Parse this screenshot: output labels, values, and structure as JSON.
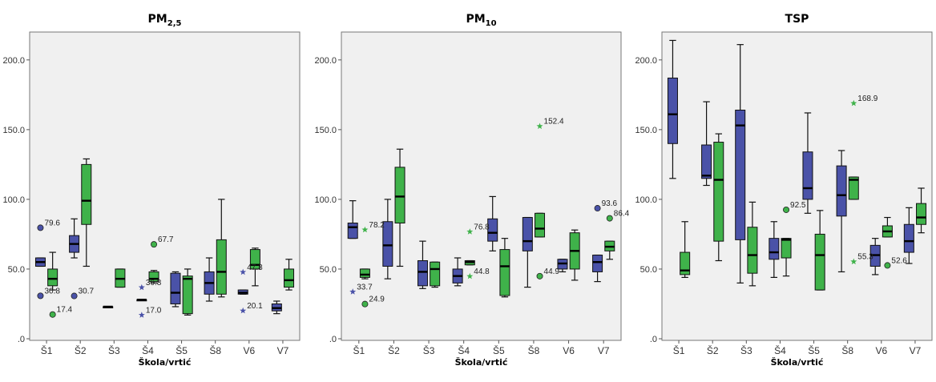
{
  "colors": {
    "blue": "#4a52a8",
    "green": "#3fb24a",
    "plot_bg": "#f0f0f0",
    "frame": "#777777"
  },
  "chart_data": [
    {
      "type": "boxplot",
      "title": "PM",
      "title_sub": "2,5",
      "xlabel": "Škola/vrtić",
      "ylabel": "",
      "ylim": [
        0,
        220
      ],
      "yticks": [
        ".0",
        "50.0",
        "100.0",
        "150.0",
        "200.0"
      ],
      "categories": [
        "Š1",
        "Š2",
        "Š3",
        "Š4",
        "Š5",
        "Š8",
        "V6",
        "V7"
      ],
      "boxes": [
        {
          "cat": "Š1",
          "series": "blue",
          "min": 52,
          "q1": 52,
          "median": 55,
          "q3": 58,
          "max": 58
        },
        {
          "cat": "Š1",
          "series": "green",
          "min": 35,
          "q1": 38,
          "median": 43,
          "q3": 50,
          "max": 62
        },
        {
          "cat": "Š2",
          "series": "blue",
          "min": 58,
          "q1": 62,
          "median": 68,
          "q3": 74,
          "max": 86
        },
        {
          "cat": "Š2",
          "series": "green",
          "min": 52,
          "q1": 82,
          "median": 99,
          "q3": 125,
          "max": 129
        },
        {
          "cat": "Š3",
          "series": "blue",
          "min": 23,
          "q1": 23,
          "median": 23,
          "q3": 23,
          "max": 23
        },
        {
          "cat": "Š3",
          "series": "green",
          "min": 37,
          "q1": 37,
          "median": 43,
          "q3": 50,
          "max": 50
        },
        {
          "cat": "Š4",
          "series": "blue",
          "min": 28,
          "q1": 28,
          "median": 28,
          "q3": 28,
          "max": 28
        },
        {
          "cat": "Š4",
          "series": "green",
          "min": 40,
          "q1": 41,
          "median": 43,
          "q3": 48,
          "max": 49
        },
        {
          "cat": "Š5",
          "series": "blue",
          "min": 23,
          "q1": 25,
          "median": 33,
          "q3": 47,
          "max": 48
        },
        {
          "cat": "Š5",
          "series": "green",
          "min": 17,
          "q1": 18,
          "median": 43,
          "q3": 45,
          "max": 50
        },
        {
          "cat": "Š8",
          "series": "blue",
          "min": 27,
          "q1": 32,
          "median": 40,
          "q3": 48,
          "max": 58
        },
        {
          "cat": "Š8",
          "series": "green",
          "min": 30,
          "q1": 32,
          "median": 48,
          "q3": 71,
          "max": 100
        },
        {
          "cat": "V6",
          "series": "blue",
          "min": 32,
          "q1": 32,
          "median": 33,
          "q3": 35,
          "max": 35
        },
        {
          "cat": "V6",
          "series": "green",
          "min": 38,
          "q1": 50,
          "median": 53,
          "q3": 64,
          "max": 65
        },
        {
          "cat": "V7",
          "series": "blue",
          "min": 18,
          "q1": 20,
          "median": 22,
          "q3": 25,
          "max": 27
        },
        {
          "cat": "V7",
          "series": "green",
          "min": 35,
          "q1": 37,
          "median": 42,
          "q3": 50,
          "max": 57
        }
      ],
      "outliers": [
        {
          "cat": "Š1",
          "series": "blue",
          "shape": "circle",
          "value": 79.6,
          "label": "79.6"
        },
        {
          "cat": "Š1",
          "series": "blue",
          "shape": "circle",
          "value": 30.8,
          "label": "30.8"
        },
        {
          "cat": "Š1",
          "series": "green",
          "shape": "circle",
          "value": 17.4,
          "label": "17.4"
        },
        {
          "cat": "Š2",
          "series": "blue",
          "shape": "circle",
          "value": 30.7,
          "label": "30.7"
        },
        {
          "cat": "Š4",
          "series": "blue",
          "shape": "star",
          "value": 36.8,
          "label": "36.8"
        },
        {
          "cat": "Š4",
          "series": "blue",
          "shape": "star",
          "value": 17.0,
          "label": "17.0"
        },
        {
          "cat": "Š4",
          "series": "green",
          "shape": "circle",
          "value": 67.7,
          "label": "67.7"
        },
        {
          "cat": "V6",
          "series": "blue",
          "shape": "star",
          "value": 47.8,
          "label": "47.8"
        },
        {
          "cat": "V6",
          "series": "blue",
          "shape": "star",
          "value": 20.1,
          "label": "20.1"
        }
      ]
    },
    {
      "type": "boxplot",
      "title": "PM",
      "title_sub": "10",
      "xlabel": "Škola/vrtić",
      "ylabel": "",
      "ylim": [
        0,
        220
      ],
      "yticks": [
        ".0",
        "50.0",
        "100.0",
        "150.0",
        "200.0"
      ],
      "categories": [
        "Š1",
        "Š2",
        "Š3",
        "Š4",
        "Š5",
        "Š8",
        "V6",
        "V7"
      ],
      "boxes": [
        {
          "cat": "Š1",
          "series": "blue",
          "min": 72,
          "q1": 72,
          "median": 80,
          "q3": 83,
          "max": 99
        },
        {
          "cat": "Š1",
          "series": "green",
          "min": 43,
          "q1": 44,
          "median": 46,
          "q3": 50,
          "max": 50
        },
        {
          "cat": "Š2",
          "series": "blue",
          "min": 43,
          "q1": 52,
          "median": 67,
          "q3": 84,
          "max": 100
        },
        {
          "cat": "Š2",
          "series": "green",
          "min": 52,
          "q1": 83,
          "median": 102,
          "q3": 123,
          "max": 136
        },
        {
          "cat": "Š3",
          "series": "blue",
          "min": 36,
          "q1": 38,
          "median": 48,
          "q3": 56,
          "max": 70
        },
        {
          "cat": "Š3",
          "series": "green",
          "min": 37,
          "q1": 38,
          "median": 50,
          "q3": 55,
          "max": 55
        },
        {
          "cat": "Š4",
          "series": "blue",
          "min": 38,
          "q1": 40,
          "median": 45,
          "q3": 50,
          "max": 58
        },
        {
          "cat": "Š4",
          "series": "green",
          "min": 53,
          "q1": 53,
          "median": 55,
          "q3": 56,
          "max": 56
        },
        {
          "cat": "Š5",
          "series": "blue",
          "min": 63,
          "q1": 70,
          "median": 76,
          "q3": 86,
          "max": 102
        },
        {
          "cat": "Š5",
          "series": "green",
          "min": 30,
          "q1": 31,
          "median": 52,
          "q3": 64,
          "max": 72
        },
        {
          "cat": "Š8",
          "series": "blue",
          "min": 37,
          "q1": 63,
          "median": 70,
          "q3": 87,
          "max": 87
        },
        {
          "cat": "Š8",
          "series": "green",
          "min": 73,
          "q1": 73,
          "median": 79,
          "q3": 90,
          "max": 90
        },
        {
          "cat": "V6",
          "series": "blue",
          "min": 48,
          "q1": 50,
          "median": 54,
          "q3": 57,
          "max": 57
        },
        {
          "cat": "V6",
          "series": "green",
          "min": 42,
          "q1": 50,
          "median": 63,
          "q3": 76,
          "max": 78
        },
        {
          "cat": "V7",
          "series": "blue",
          "min": 41,
          "q1": 48,
          "median": 55,
          "q3": 60,
          "max": 60
        },
        {
          "cat": "V7",
          "series": "green",
          "min": 57,
          "q1": 63,
          "median": 66,
          "q3": 70,
          "max": 70
        }
      ],
      "outliers": [
        {
          "cat": "Š1",
          "series": "green",
          "shape": "star",
          "value": 78.2,
          "label": "78.2"
        },
        {
          "cat": "Š1",
          "series": "blue",
          "shape": "star",
          "value": 33.7,
          "label": "33.7"
        },
        {
          "cat": "Š1",
          "series": "green",
          "shape": "circle",
          "value": 24.9,
          "label": "24.9"
        },
        {
          "cat": "Š4",
          "series": "green",
          "shape": "star",
          "value": 76.8,
          "label": "76.8"
        },
        {
          "cat": "Š4",
          "series": "green",
          "shape": "star",
          "value": 44.8,
          "label": "44.8"
        },
        {
          "cat": "Š8",
          "series": "green",
          "shape": "star",
          "value": 152.4,
          "label": "152.4"
        },
        {
          "cat": "Š8",
          "series": "green",
          "shape": "circle",
          "value": 44.9,
          "label": "44.9"
        },
        {
          "cat": "V7",
          "series": "blue",
          "shape": "circle",
          "value": 93.6,
          "label": "93.6"
        },
        {
          "cat": "V7",
          "series": "green",
          "shape": "circle",
          "value": 86.4,
          "label": "86.4"
        }
      ]
    },
    {
      "type": "boxplot",
      "title": "TSP",
      "title_sub": "",
      "xlabel": "Škola/vrtić",
      "ylabel": "",
      "ylim": [
        0,
        220
      ],
      "yticks": [
        ".0",
        "50.0",
        "100.0",
        "150.0",
        "200.0"
      ],
      "categories": [
        "Š1",
        "Š2",
        "Š3",
        "Š4",
        "Š5",
        "Š8",
        "V6",
        "V7"
      ],
      "boxes": [
        {
          "cat": "Š1",
          "series": "blue",
          "min": 115,
          "q1": 140,
          "median": 161,
          "q3": 187,
          "max": 214
        },
        {
          "cat": "Š1",
          "series": "green",
          "min": 44,
          "q1": 46,
          "median": 49,
          "q3": 62,
          "max": 84
        },
        {
          "cat": "Š2",
          "series": "blue",
          "min": 110,
          "q1": 115,
          "median": 117,
          "q3": 139,
          "max": 170
        },
        {
          "cat": "Š2",
          "series": "green",
          "min": 56,
          "q1": 70,
          "median": 114,
          "q3": 141,
          "max": 147
        },
        {
          "cat": "Š3",
          "series": "blue",
          "min": 40,
          "q1": 71,
          "median": 153,
          "q3": 164,
          "max": 211
        },
        {
          "cat": "Š3",
          "series": "green",
          "min": 38,
          "q1": 47,
          "median": 60,
          "q3": 80,
          "max": 98
        },
        {
          "cat": "Š4",
          "series": "blue",
          "min": 44,
          "q1": 57,
          "median": 62,
          "q3": 72,
          "max": 84
        },
        {
          "cat": "Š4",
          "series": "green",
          "min": 45,
          "q1": 58,
          "median": 71,
          "q3": 72,
          "max": 72
        },
        {
          "cat": "Š5",
          "series": "blue",
          "min": 90,
          "q1": 100,
          "median": 108,
          "q3": 134,
          "max": 162
        },
        {
          "cat": "Š5",
          "series": "green",
          "min": 35,
          "q1": 35,
          "median": 60,
          "q3": 75,
          "max": 92
        },
        {
          "cat": "Š8",
          "series": "blue",
          "min": 48,
          "q1": 88,
          "median": 103,
          "q3": 124,
          "max": 135
        },
        {
          "cat": "Š8",
          "series": "green",
          "min": 100,
          "q1": 100,
          "median": 114,
          "q3": 116,
          "max": 116
        },
        {
          "cat": "V6",
          "series": "blue",
          "min": 46,
          "q1": 52,
          "median": 60,
          "q3": 67,
          "max": 72
        },
        {
          "cat": "V6",
          "series": "green",
          "min": 73,
          "q1": 73,
          "median": 77,
          "q3": 81,
          "max": 87
        },
        {
          "cat": "V7",
          "series": "blue",
          "min": 54,
          "q1": 62,
          "median": 70,
          "q3": 82,
          "max": 94
        },
        {
          "cat": "V7",
          "series": "green",
          "min": 76,
          "q1": 82,
          "median": 87,
          "q3": 97,
          "max": 108
        }
      ],
      "outliers": [
        {
          "cat": "Š4",
          "series": "green",
          "shape": "circle",
          "value": 92.5,
          "label": "92.5"
        },
        {
          "cat": "Š8",
          "series": "green",
          "shape": "star",
          "value": 168.9,
          "label": "168.9"
        },
        {
          "cat": "Š8",
          "series": "green",
          "shape": "star",
          "value": 55.3,
          "label": "55.3"
        },
        {
          "cat": "V6",
          "series": "green",
          "shape": "circle",
          "value": 52.6,
          "label": "52.6"
        }
      ]
    }
  ]
}
